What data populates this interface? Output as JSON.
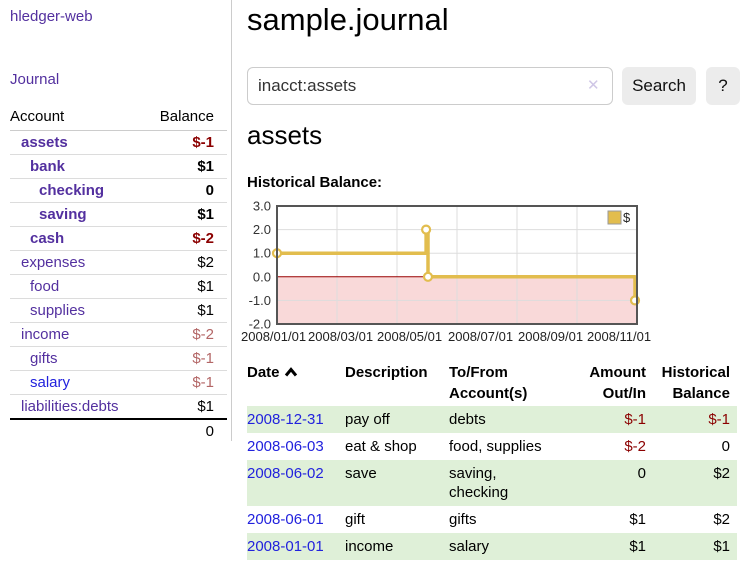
{
  "app": {
    "brand": "hledger-web",
    "nav_journal": "Journal"
  },
  "sidebar": {
    "header": {
      "account": "Account",
      "balance": "Balance"
    },
    "accounts": [
      {
        "name": "assets",
        "depth": 1,
        "balance": "$-1",
        "bold": true
      },
      {
        "name": "bank",
        "depth": 2,
        "balance": "$1",
        "bold": true
      },
      {
        "name": "checking",
        "depth": 3,
        "balance": "0",
        "bold": true
      },
      {
        "name": "saving",
        "depth": 3,
        "balance": "$1",
        "bold": true
      },
      {
        "name": "cash",
        "depth": 2,
        "balance": "$-2",
        "bold": true
      },
      {
        "name": "expenses",
        "depth": 1,
        "balance": "$2",
        "bold": false
      },
      {
        "name": "food",
        "depth": 2,
        "balance": "$1",
        "bold": false
      },
      {
        "name": "supplies",
        "depth": 2,
        "balance": "$1",
        "bold": false
      },
      {
        "name": "income",
        "depth": 1,
        "balance": "$-2",
        "bold": false
      },
      {
        "name": "gifts",
        "depth": 2,
        "balance": "$-1",
        "bold": false
      },
      {
        "name": "salary",
        "depth": 2,
        "balance": "$-1",
        "bold": false,
        "unvisited": true
      },
      {
        "name": "liabilities:debts",
        "depth": 1,
        "balance": "$1",
        "bold": false
      }
    ],
    "total": "0"
  },
  "header": {
    "title": "sample.journal"
  },
  "search": {
    "value": "inacct:assets",
    "clear_icon": "✕",
    "button_label": "Search",
    "help_label": "?"
  },
  "account_page": {
    "heading": "assets",
    "chart_label": "Historical Balance:"
  },
  "chart_data": {
    "type": "line",
    "title": "Historical Balance:",
    "series": [
      {
        "name": "$",
        "color": "#e2bd4e",
        "step": true,
        "points": [
          {
            "date": "2008-01-01",
            "value": 1
          },
          {
            "date": "2008-06-01",
            "value": 2
          },
          {
            "date": "2008-06-03",
            "value": 0
          },
          {
            "date": "2008-12-31",
            "value": -1
          }
        ]
      }
    ],
    "ylim": [
      -2,
      3
    ],
    "yticks": [
      3,
      2,
      1,
      0,
      -1,
      -2
    ],
    "xticks": [
      "2008/01/01",
      "2008/03/01",
      "2008/05/01",
      "2008/07/01",
      "2008/09/01",
      "2008/11/01"
    ],
    "grid": true,
    "legend_position": "top-right",
    "negative_region_color": "#f9d9d9",
    "zero_line_color": "#990000"
  },
  "register": {
    "headers": {
      "date": "Date",
      "description": "Description",
      "accounts": "To/From Account(s)",
      "amount": "Amount Out/In",
      "balance": "Historical Balance"
    },
    "rows": [
      {
        "date": "2008-12-31",
        "description": "pay off",
        "accounts": "debts",
        "amount": "$-1",
        "balance": "$-1"
      },
      {
        "date": "2008-06-03",
        "description": "eat & shop",
        "accounts": "food, supplies",
        "amount": "$-2",
        "balance": "0"
      },
      {
        "date": "2008-06-02",
        "description": "save",
        "accounts": "saving,\nchecking",
        "amount": "0",
        "balance": "$2"
      },
      {
        "date": "2008-06-01",
        "description": "gift",
        "accounts": "gifts",
        "amount": "$1",
        "balance": "$2"
      },
      {
        "date": "2008-01-01",
        "description": "income",
        "accounts": "salary",
        "amount": "$1",
        "balance": "$1"
      }
    ]
  },
  "colors": {
    "accent_purple": "#53309f",
    "link_blue": "#2222dd",
    "negative_red": "#8b0000",
    "negative_muted_red": "#b36666",
    "row_green": "#dff0d8",
    "chart_gold": "#e2bd4e",
    "chart_negative_region": "#f9d9d9",
    "chart_zero_line": "#990000"
  }
}
